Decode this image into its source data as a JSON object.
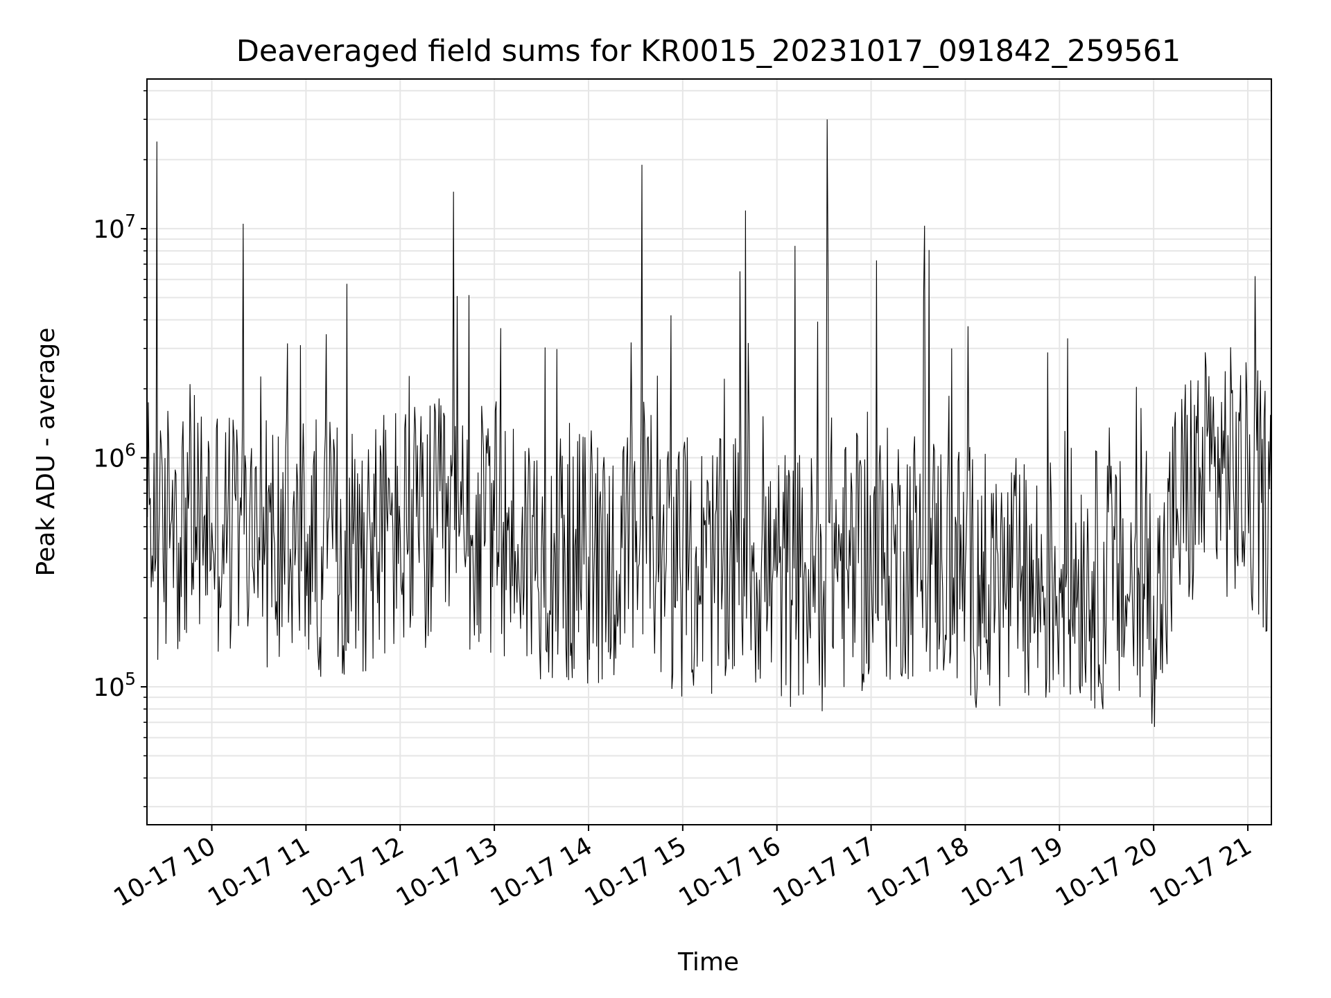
{
  "chart_data": {
    "type": "line",
    "title": "Deaveraged field sums for KR0015_20231017_091842_259561",
    "xlabel": "Time",
    "ylabel": "Peak ADU - average",
    "yscale": "log",
    "ylim": [
      25000,
      45000000
    ],
    "xlim": [
      "2023-10-17 09:18:42",
      "2023-10-17 21:15:00"
    ],
    "grid": true,
    "line_color": "#000000",
    "x_ticks": [
      "10-17 10",
      "10-17 11",
      "10-17 12",
      "10-17 13",
      "10-17 14",
      "10-17 15",
      "10-17 16",
      "10-17 17",
      "10-17 18",
      "10-17 19",
      "10-17 20",
      "10-17 21"
    ],
    "y_ticks": [
      {
        "base": "10",
        "exp": "5",
        "value": 100000
      },
      {
        "base": "10",
        "exp": "6",
        "value": 1000000
      },
      {
        "base": "10",
        "exp": "7",
        "value": 10000000
      }
    ],
    "series": [
      {
        "x": [
          "2023-10-17 09:19",
          "2023-10-17 09:25",
          "2023-10-17 09:29",
          "2023-10-17 09:35",
          "2023-10-17 09:40",
          "2023-10-17 09:45",
          "2023-10-17 09:50",
          "2023-10-17 09:55",
          "2023-10-17 10:00",
          "2023-10-17 10:10",
          "2023-10-17 10:20",
          "2023-10-17 10:30",
          "2023-10-17 10:40",
          "2023-10-17 10:50",
          "2023-10-17 11:00",
          "2023-10-17 11:10",
          "2023-10-17 11:17",
          "2023-10-17 11:30",
          "2023-10-17 11:45",
          "2023-10-17 12:00",
          "2023-10-17 12:15",
          "2023-10-17 12:30",
          "2023-10-17 12:34",
          "2023-10-17 12:45",
          "2023-10-17 13:00",
          "2023-10-17 13:15",
          "2023-10-17 13:30",
          "2023-10-17 13:45",
          "2023-10-17 14:00",
          "2023-10-17 14:15",
          "2023-10-17 14:30",
          "2023-10-17 14:34",
          "2023-10-17 14:45",
          "2023-10-17 15:00",
          "2023-10-17 15:15",
          "2023-10-17 15:30",
          "2023-10-17 15:40",
          "2023-10-17 15:50",
          "2023-10-17 16:00",
          "2023-10-17 16:15",
          "2023-10-17 16:30",
          "2023-10-17 16:32",
          "2023-10-17 16:45",
          "2023-10-17 17:00",
          "2023-10-17 17:15",
          "2023-10-17 17:30",
          "2023-10-17 17:45",
          "2023-10-17 18:00",
          "2023-10-17 18:15",
          "2023-10-17 18:30",
          "2023-10-17 18:45",
          "2023-10-17 19:00",
          "2023-10-17 19:15",
          "2023-10-17 19:30",
          "2023-10-17 19:45",
          "2023-10-17 20:00",
          "2023-10-17 20:05",
          "2023-10-17 20:15",
          "2023-10-17 20:30",
          "2023-10-17 20:45",
          "2023-10-17 21:00",
          "2023-10-17 21:15"
        ],
        "y": [
          550000,
          24000000,
          350000,
          800000,
          450000,
          600000,
          500000,
          550000,
          520000,
          480000,
          10500000,
          450000,
          420000,
          400000,
          430000,
          410000,
          400000,
          420000,
          450000,
          480000,
          470000,
          500000,
          14500000,
          460000,
          480000,
          420000,
          400000,
          380000,
          370000,
          360000,
          350000,
          19000000,
          350000,
          340000,
          330000,
          320000,
          12000000,
          310000,
          300000,
          300000,
          290000,
          30000000,
          320000,
          350000,
          380000,
          400000,
          360000,
          320000,
          280000,
          270000,
          260000,
          300000,
          320000,
          280000,
          260000,
          250000,
          230000,
          600000,
          800000,
          900000,
          700000,
          600000
        ]
      }
    ]
  }
}
